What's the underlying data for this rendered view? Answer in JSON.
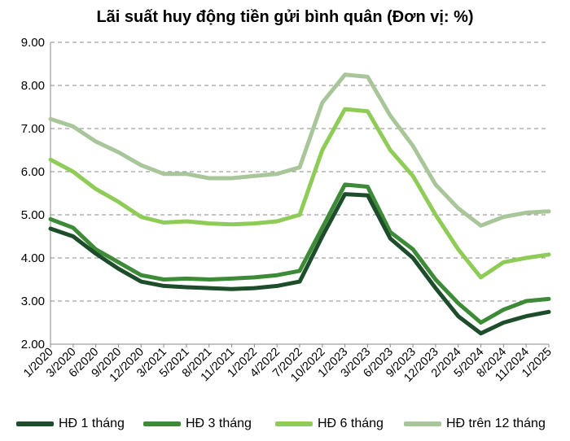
{
  "chart_data": {
    "type": "line",
    "title": "Lãi suất huy động tiền gửi bình quân (Đơn vị: %)",
    "xlabel": "",
    "ylabel": "",
    "ylim": [
      2.0,
      9.0
    ],
    "yticks": [
      "2.00",
      "3.00",
      "4.00",
      "5.00",
      "6.00",
      "7.00",
      "8.00",
      "9.00"
    ],
    "grid": "horizontal dashed",
    "legend_position": "bottom",
    "x": [
      "1/2020",
      "3/2020",
      "6/2020",
      "9/2020",
      "12/2020",
      "3/2021",
      "5/2021",
      "8/2021",
      "11/2021",
      "1/2022",
      "4/2022",
      "7/2022",
      "10/2022",
      "1/2023",
      "3/2023",
      "6/2023",
      "9/2023",
      "12/2023",
      "2/2024",
      "5/2024",
      "8/2024",
      "11/2024",
      "1/2025"
    ],
    "series": [
      {
        "name": "HĐ 1 tháng",
        "color": "#1e4d2b",
        "values": [
          4.68,
          4.5,
          4.1,
          3.75,
          3.45,
          3.35,
          3.32,
          3.3,
          3.28,
          3.3,
          3.35,
          3.45,
          4.5,
          5.48,
          5.45,
          4.45,
          4.0,
          3.3,
          2.65,
          2.25,
          2.5,
          2.65,
          2.75
        ]
      },
      {
        "name": "HĐ 3 tháng",
        "color": "#3d8b37",
        "values": [
          4.9,
          4.7,
          4.2,
          3.9,
          3.6,
          3.5,
          3.52,
          3.5,
          3.52,
          3.55,
          3.6,
          3.7,
          4.7,
          5.7,
          5.65,
          4.6,
          4.2,
          3.5,
          2.95,
          2.5,
          2.8,
          3.0,
          3.05
        ]
      },
      {
        "name": "HĐ 6 tháng",
        "color": "#8fcc57",
        "values": [
          6.28,
          6.0,
          5.6,
          5.3,
          4.95,
          4.82,
          4.85,
          4.8,
          4.78,
          4.8,
          4.85,
          5.0,
          6.5,
          7.45,
          7.4,
          6.5,
          5.9,
          5.0,
          4.2,
          3.55,
          3.9,
          4.0,
          4.08
        ]
      },
      {
        "name": "HĐ trên 12 tháng",
        "color": "#a8c69a",
        "values": [
          7.22,
          7.05,
          6.7,
          6.45,
          6.15,
          5.95,
          5.95,
          5.85,
          5.85,
          5.9,
          5.95,
          6.1,
          7.6,
          8.25,
          8.2,
          7.3,
          6.6,
          5.7,
          5.15,
          4.75,
          4.95,
          5.05,
          5.08
        ]
      }
    ]
  }
}
